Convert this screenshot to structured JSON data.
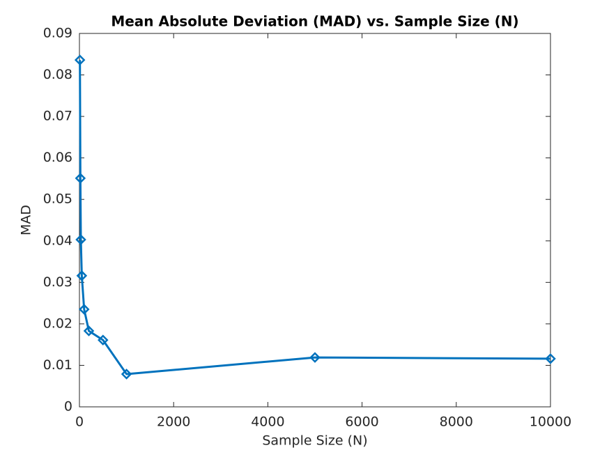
{
  "chart_data": {
    "type": "line",
    "title": "Mean Absolute Deviation (MAD) vs. Sample Size (N)",
    "x_label": "Sample Size (N)",
    "y_label": "MAD",
    "x": [
      10,
      20,
      30,
      50,
      100,
      200,
      500,
      1000,
      5000,
      10000
    ],
    "series": [
      {
        "name": "MAD",
        "color": "#0072bd",
        "values": [
          0.0836,
          0.0551,
          0.0403,
          0.0316,
          0.0235,
          0.0183,
          0.0161,
          0.0079,
          0.0119,
          0.0116
        ]
      }
    ],
    "xlim": [
      0,
      10000
    ],
    "xticks": [
      0,
      2000,
      4000,
      6000,
      8000,
      10000
    ],
    "ylim": [
      0,
      0.09
    ],
    "yticks": [
      0,
      0.01,
      0.02,
      0.03,
      0.04,
      0.05,
      0.06,
      0.07,
      0.08,
      0.09
    ],
    "grid": false,
    "marker": "diamond"
  }
}
